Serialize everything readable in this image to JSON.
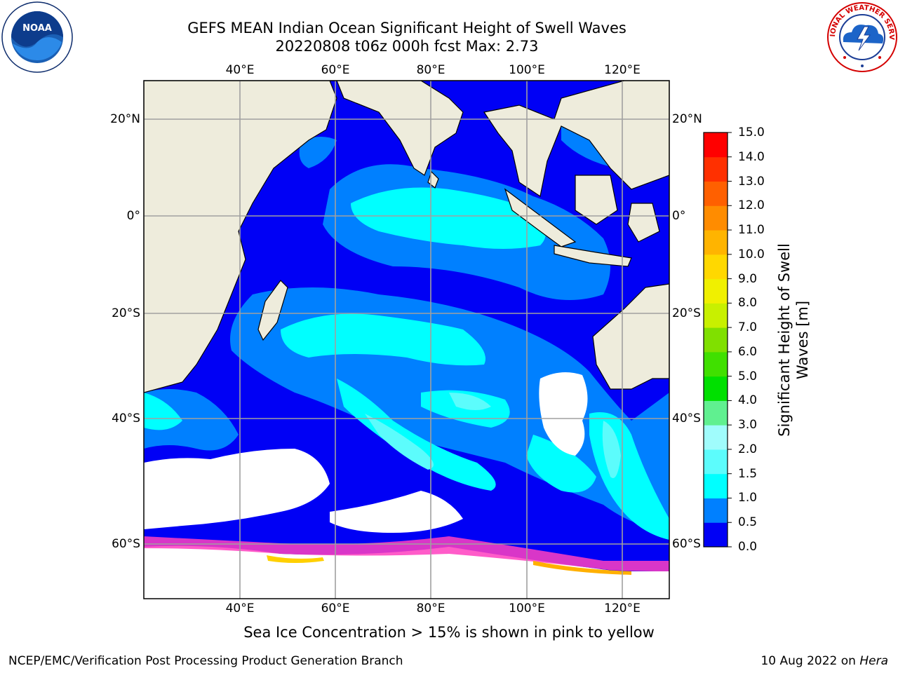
{
  "header": {
    "title_line1": "GEFS MEAN Indian Ocean Significant Height of Swell Waves",
    "title_line2": "20220808 t06z 000h fcst   Max: 2.73"
  },
  "logos": {
    "left_name": "NOAA",
    "right_name": "NATIONAL WEATHER SERVICE"
  },
  "map": {
    "lon_labels": [
      "40°E",
      "60°E",
      "80°E",
      "100°E",
      "120°E"
    ],
    "lat_labels": [
      "20°N",
      "0°",
      "20°S",
      "40°S",
      "60°S"
    ],
    "colors": {
      "land": "#eeecdc",
      "no_data": "#ffffff",
      "grid": "#a0a0a0"
    }
  },
  "colorbar": {
    "title": "Significant Height of Swell Waves [m]",
    "ticks": [
      "0.0",
      "0.5",
      "1.0",
      "1.5",
      "2.0",
      "3.0",
      "4.0",
      "5.0",
      "6.0",
      "7.0",
      "8.0",
      "9.0",
      "10.0",
      "11.0",
      "12.0",
      "13.0",
      "14.0",
      "15.0"
    ],
    "colors": [
      "#0000f5",
      "#0080ff",
      "#00ffff",
      "#5cfcfc",
      "#a0fcfc",
      "#60f090",
      "#00e000",
      "#40e000",
      "#80e000",
      "#c8f000",
      "#f0f000",
      "#ffd800",
      "#ffb400",
      "#ff8c00",
      "#ff6000",
      "#ff3000",
      "#ff0000"
    ]
  },
  "note": "Sea Ice Concentration > 15% is shown in pink to yellow",
  "footer": {
    "left": "NCEP/EMC/Verification Post Processing Product Generation Branch",
    "right_date": "10 Aug 2022 on",
    "right_machine": "Hera"
  }
}
